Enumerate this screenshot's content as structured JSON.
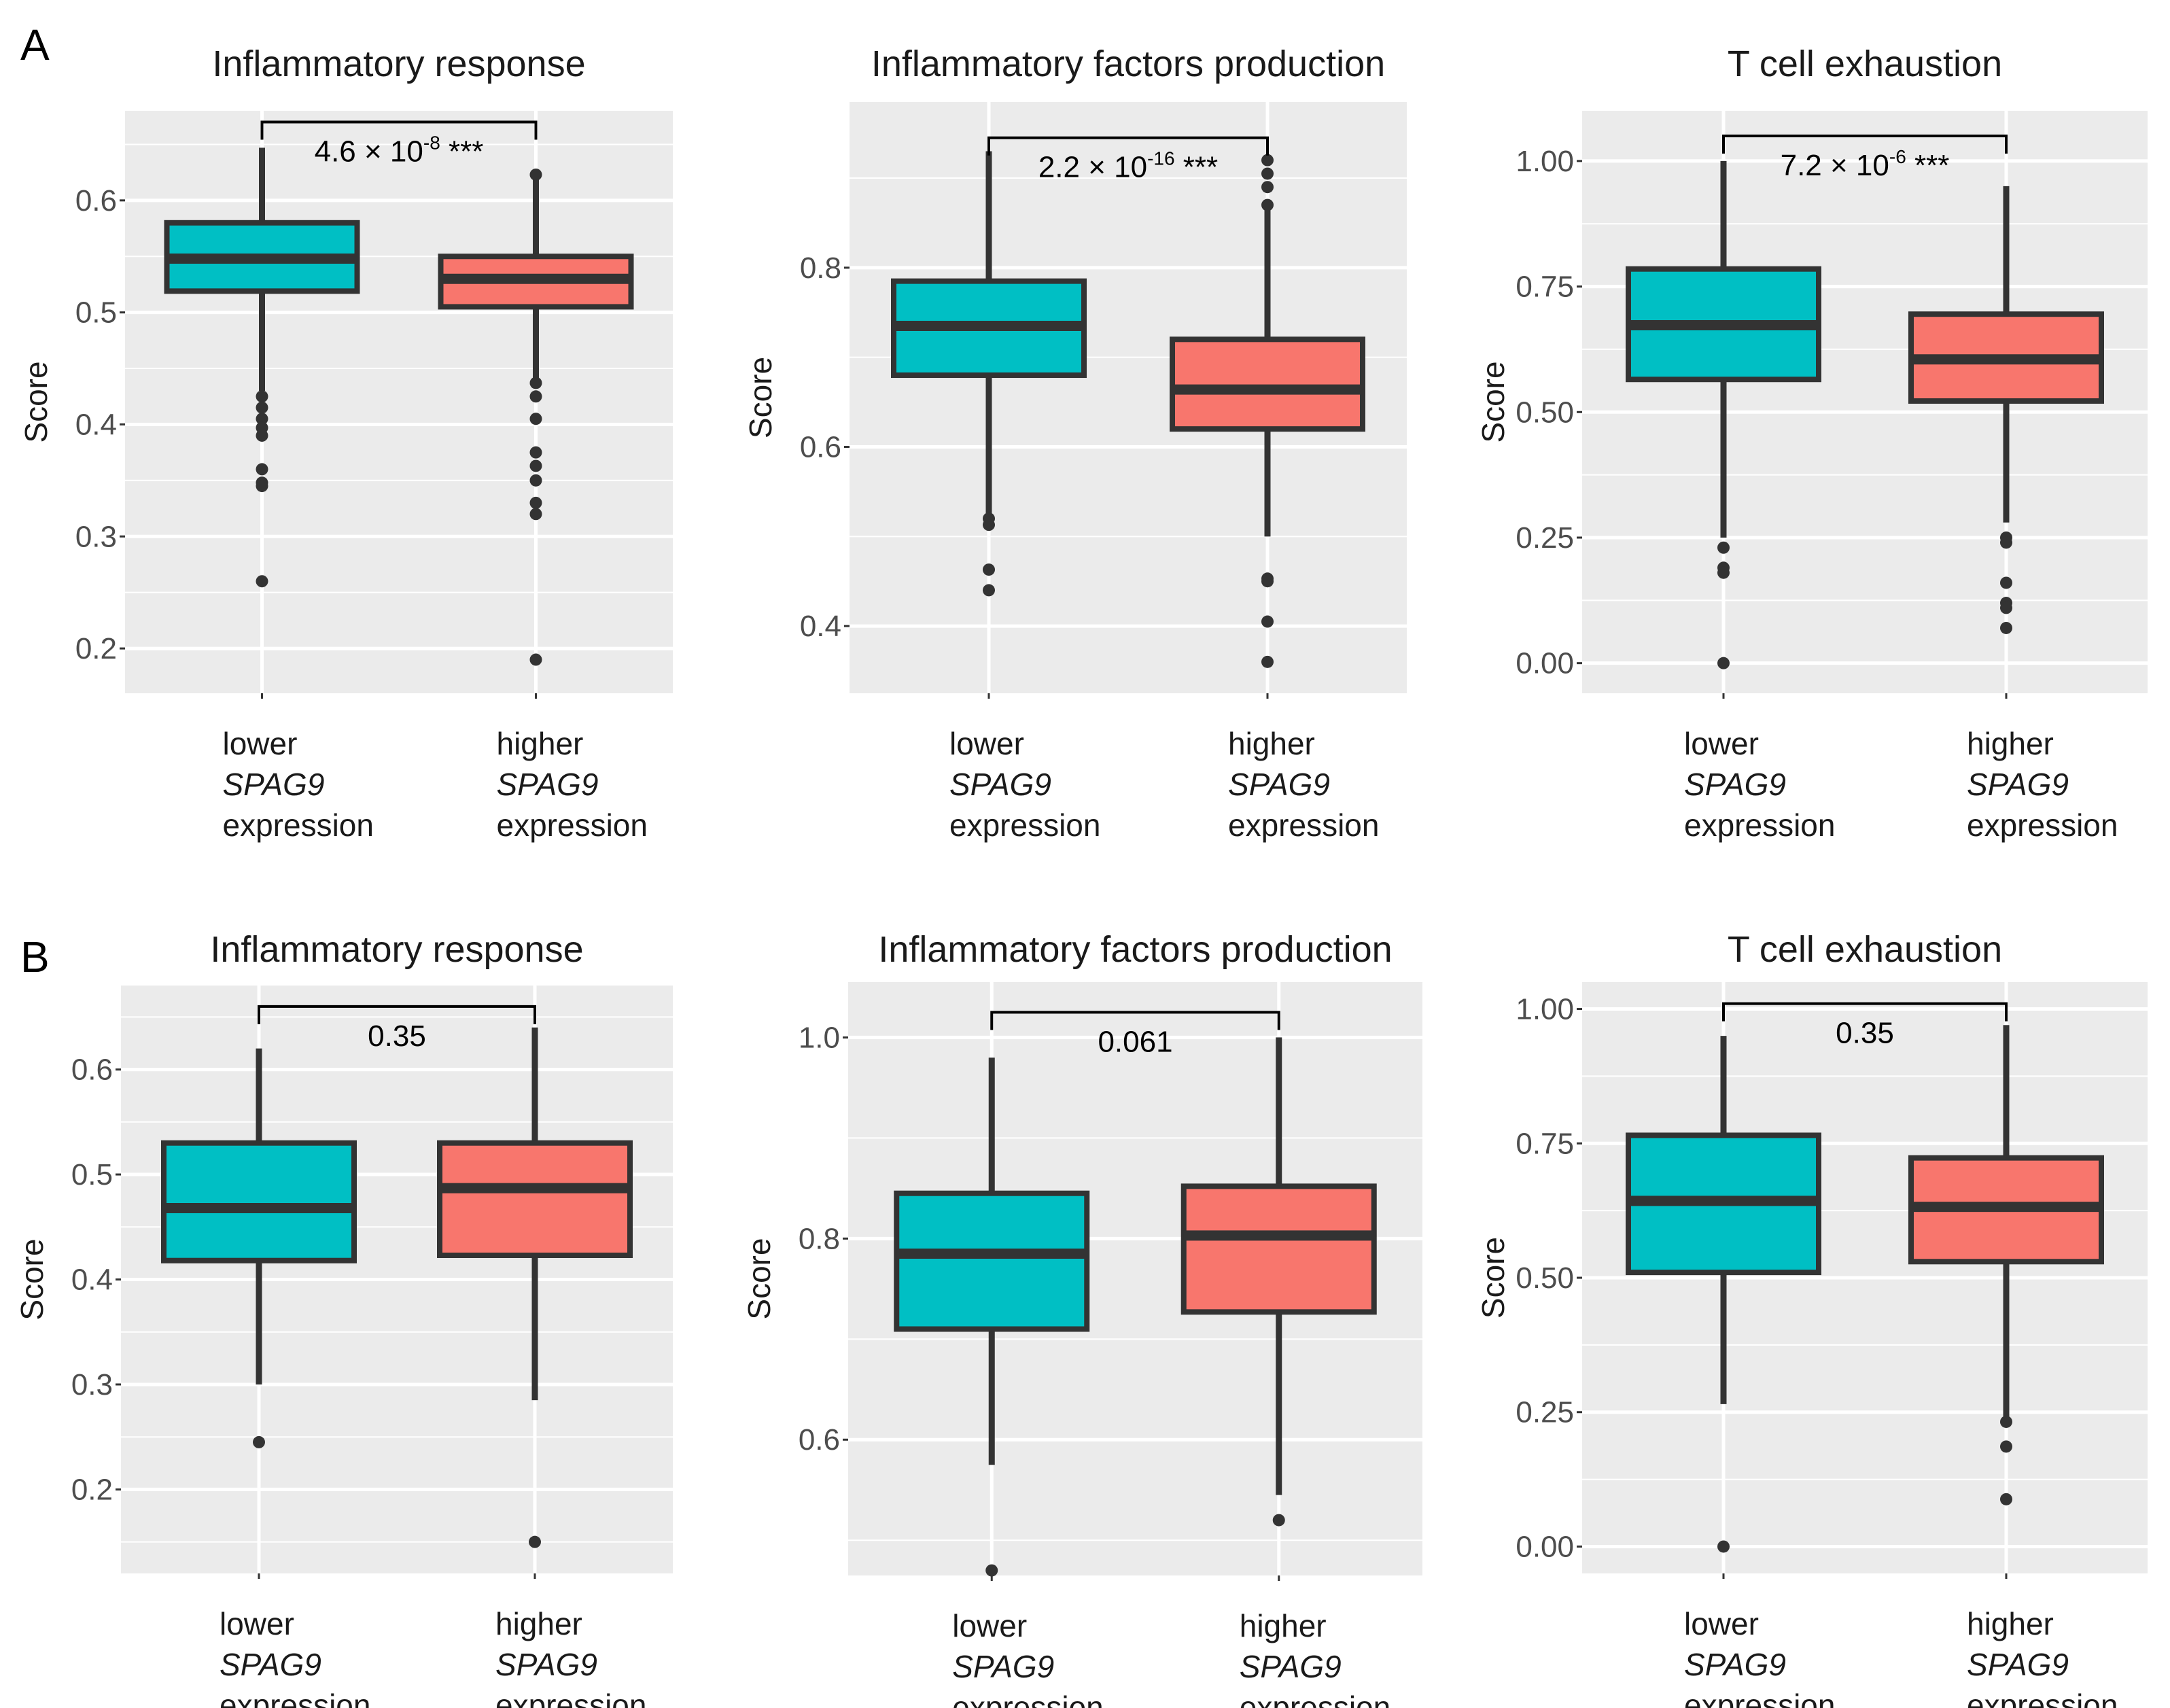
{
  "colors": {
    "lower": "#00BFC4",
    "higher": "#F8766D",
    "panel_bg": "#EBEBEB",
    "box_edge": "#333333",
    "grid": "#FFFFFF"
  },
  "panel_labels": [
    "A",
    "B"
  ],
  "chart_data": [
    {
      "panel": "A",
      "type": "boxplot",
      "title": "Inflammatory response",
      "ylabel": "Score",
      "ylim": [
        0.16,
        0.68
      ],
      "yticks": [
        0.2,
        0.3,
        0.4,
        0.5,
        0.6
      ],
      "ytick_labels": [
        "0.2",
        "0.3",
        "0.4",
        "0.5",
        "0.6"
      ],
      "groups": [
        {
          "key": "lower",
          "label_lines": [
            "lower",
            "SPAG9",
            "expression"
          ],
          "whisker_low": 0.43,
          "q1": 0.519,
          "median": 0.548,
          "q3": 0.58,
          "whisker_high": 0.647,
          "outliers": [
            0.425,
            0.415,
            0.405,
            0.397,
            0.39,
            0.36,
            0.348,
            0.345,
            0.26
          ]
        },
        {
          "key": "higher",
          "label_lines": [
            "higher",
            "SPAG9",
            "expression"
          ],
          "whisker_low": 0.44,
          "q1": 0.505,
          "median": 0.53,
          "q3": 0.55,
          "whisker_high": 0.62,
          "outliers": [
            0.623,
            0.437,
            0.425,
            0.405,
            0.375,
            0.363,
            0.35,
            0.33,
            0.32,
            0.19
          ]
        }
      ],
      "pvalue": {
        "mantissa": "4.6 × 10",
        "exponent": "-8",
        "stars": "***",
        "bracket_y": 0.67
      }
    },
    {
      "panel": "A",
      "type": "boxplot",
      "title": "Inflammatory factors production",
      "ylabel": "Score",
      "ylim": [
        0.325,
        0.985
      ],
      "yticks": [
        0.4,
        0.6,
        0.8
      ],
      "ytick_labels": [
        "0.4",
        "0.6",
        "0.8"
      ],
      "groups": [
        {
          "key": "lower",
          "label_lines": [
            "lower",
            "SPAG9",
            "expression"
          ],
          "whisker_low": 0.525,
          "q1": 0.68,
          "median": 0.735,
          "q3": 0.785,
          "whisker_high": 0.93,
          "outliers": [
            0.52,
            0.513,
            0.463,
            0.44
          ]
        },
        {
          "key": "higher",
          "label_lines": [
            "higher",
            "SPAG9",
            "expression"
          ],
          "whisker_low": 0.5,
          "q1": 0.62,
          "median": 0.664,
          "q3": 0.72,
          "whisker_high": 0.865,
          "outliers": [
            0.92,
            0.905,
            0.89,
            0.87,
            0.453,
            0.45,
            0.405,
            0.36
          ]
        }
      ],
      "pvalue": {
        "mantissa": "2.2 × 10",
        "exponent": "-16",
        "stars": "***",
        "bracket_y": 0.945
      }
    },
    {
      "panel": "A",
      "type": "boxplot",
      "title": "T cell exhaustion",
      "ylabel": "Score",
      "ylim": [
        -0.06,
        1.1
      ],
      "yticks": [
        0.0,
        0.25,
        0.5,
        0.75,
        1.0
      ],
      "ytick_labels": [
        "0.00",
        "0.25",
        "0.50",
        "0.75",
        "1.00"
      ],
      "groups": [
        {
          "key": "lower",
          "label_lines": [
            "lower",
            "SPAG9",
            "expression"
          ],
          "whisker_low": 0.25,
          "q1": 0.565,
          "median": 0.673,
          "q3": 0.785,
          "whisker_high": 1.0,
          "outliers": [
            0.23,
            0.19,
            0.18,
            0.0
          ]
        },
        {
          "key": "higher",
          "label_lines": [
            "higher",
            "SPAG9",
            "expression"
          ],
          "whisker_low": 0.28,
          "q1": 0.522,
          "median": 0.605,
          "q3": 0.695,
          "whisker_high": 0.95,
          "outliers": [
            0.25,
            0.24,
            0.16,
            0.12,
            0.11,
            0.07
          ]
        }
      ],
      "pvalue": {
        "mantissa": "7.2 × 10",
        "exponent": "-6",
        "stars": "***",
        "bracket_y": 1.05
      }
    },
    {
      "panel": "B",
      "type": "boxplot",
      "title": "Inflammatory response",
      "ylabel": "Score",
      "ylim": [
        0.12,
        0.68
      ],
      "yticks": [
        0.2,
        0.3,
        0.4,
        0.5,
        0.6
      ],
      "ytick_labels": [
        "0.2",
        "0.3",
        "0.4",
        "0.5",
        "0.6"
      ],
      "groups": [
        {
          "key": "lower",
          "label_lines": [
            "lower",
            "SPAG9",
            "expression"
          ],
          "whisker_low": 0.3,
          "q1": 0.418,
          "median": 0.468,
          "q3": 0.53,
          "whisker_high": 0.62,
          "outliers": [
            0.245
          ]
        },
        {
          "key": "higher",
          "label_lines": [
            "higher",
            "SPAG9",
            "expression"
          ],
          "whisker_low": 0.285,
          "q1": 0.423,
          "median": 0.487,
          "q3": 0.53,
          "whisker_high": 0.64,
          "outliers": [
            0.15
          ]
        }
      ],
      "pvalue": {
        "text": "0.35",
        "bracket_y": 0.66
      }
    },
    {
      "panel": "B",
      "type": "boxplot",
      "title": "Inflammatory factors production",
      "ylabel": "Score",
      "ylim": [
        0.465,
        1.055
      ],
      "yticks": [
        0.6,
        0.8,
        1.0
      ],
      "ytick_labels": [
        "0.6",
        "0.8",
        "1.0"
      ],
      "groups": [
        {
          "key": "lower",
          "label_lines": [
            "lower",
            "SPAG9",
            "expression"
          ],
          "whisker_low": 0.575,
          "q1": 0.71,
          "median": 0.785,
          "q3": 0.845,
          "whisker_high": 0.98,
          "outliers": [
            0.47
          ]
        },
        {
          "key": "higher",
          "label_lines": [
            "higher",
            "SPAG9",
            "expression"
          ],
          "whisker_low": 0.545,
          "q1": 0.727,
          "median": 0.803,
          "q3": 0.852,
          "whisker_high": 1.0,
          "outliers": [
            0.52
          ]
        }
      ],
      "pvalue": {
        "text": "0.061",
        "bracket_y": 1.025
      }
    },
    {
      "panel": "B",
      "type": "boxplot",
      "title": "T cell exhaustion",
      "ylabel": "Score",
      "ylim": [
        -0.05,
        1.05
      ],
      "yticks": [
        0.0,
        0.25,
        0.5,
        0.75,
        1.0
      ],
      "ytick_labels": [
        "0.00",
        "0.25",
        "0.50",
        "0.75",
        "1.00"
      ],
      "groups": [
        {
          "key": "lower",
          "label_lines": [
            "lower",
            "SPAG9",
            "expression"
          ],
          "whisker_low": 0.265,
          "q1": 0.51,
          "median": 0.643,
          "q3": 0.765,
          "whisker_high": 0.95,
          "outliers": [
            0.0
          ]
        },
        {
          "key": "higher",
          "label_lines": [
            "higher",
            "SPAG9",
            "expression"
          ],
          "whisker_low": 0.24,
          "q1": 0.53,
          "median": 0.632,
          "q3": 0.723,
          "whisker_high": 0.97,
          "outliers": [
            0.232,
            0.186,
            0.088
          ]
        }
      ],
      "pvalue": {
        "text": "0.35",
        "bracket_y": 1.01
      }
    }
  ]
}
